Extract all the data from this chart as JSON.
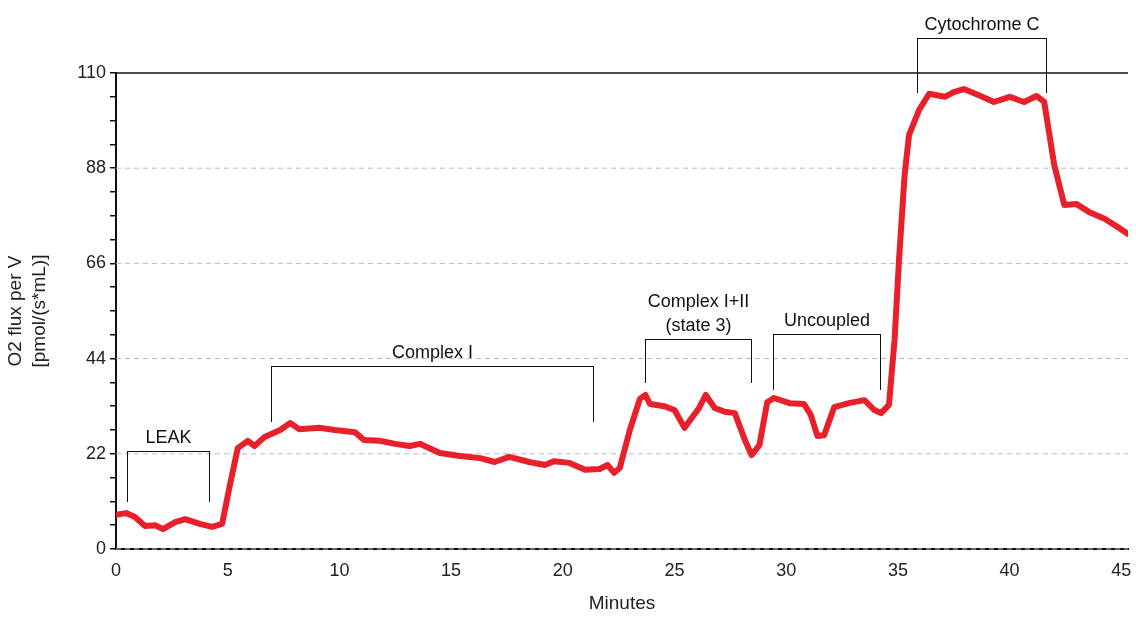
{
  "chart_data": {
    "type": "line",
    "xlabel": "Minutes",
    "ylabel": "O2 flux per V\n[pmol/(s*mL)]",
    "xlim": [
      0,
      45.3
    ],
    "xticks": [
      0,
      5,
      10,
      15,
      20,
      25,
      30,
      35,
      40,
      45
    ],
    "ylim": [
      0,
      110
    ],
    "yticks": [
      0,
      {
        "value": 5.5,
        "label": null
      },
      {
        "value": 11,
        "label": null
      },
      {
        "value": 16.5,
        "label": null
      },
      22,
      {
        "value": 27.5,
        "label": null
      },
      {
        "value": 33,
        "label": null
      },
      {
        "value": 38.5,
        "label": null
      },
      44,
      {
        "value": 49.5,
        "label": null
      },
      {
        "value": 55,
        "label": null
      },
      {
        "value": 60.5,
        "label": null
      },
      66,
      {
        "value": 71.5,
        "label": null
      },
      {
        "value": 77,
        "label": null
      },
      {
        "value": 82.5,
        "label": null
      },
      88,
      {
        "value": 93.5,
        "label": null
      },
      {
        "value": 99,
        "label": null
      },
      {
        "value": 104.5,
        "label": null
      },
      110
    ],
    "grid": "y",
    "legend": false,
    "marker": "none",
    "line_style": "solid",
    "series": [
      {
        "color": "#e8202a",
        "x": [
          0,
          0.45,
          0.85,
          1.3,
          1.75,
          2.1,
          2.65,
          3.1,
          3.75,
          4.3,
          4.75,
          5.1,
          5.45,
          5.9,
          6.2,
          6.65,
          7.35,
          7.8,
          8.2,
          9.1,
          9.8,
          10.7,
          11.1,
          11.8,
          12.5,
          13.15,
          13.6,
          14.5,
          15.4,
          16.3,
          16.95,
          17.6,
          18.5,
          19.2,
          19.6,
          20.3,
          21,
          21.65,
          22,
          22.3,
          22.55,
          23,
          23.45,
          23.7,
          23.9,
          24.55,
          25,
          25.45,
          26.1,
          26.4,
          26.8,
          27.25,
          27.7,
          28.15,
          28.45,
          28.8,
          29.15,
          29.45,
          30.15,
          30.8,
          31.1,
          31.4,
          31.7,
          32.15,
          32.8,
          33.5,
          33.95,
          34.25,
          34.6,
          34.85,
          35.05,
          35.3,
          35.5,
          35.95,
          36.4,
          37.1,
          37.5,
          37.95,
          38.6,
          39.3,
          40,
          40.65,
          41.2,
          41.55,
          42,
          42.45,
          43,
          43.55,
          44.25,
          44.9,
          45.3
        ],
        "values": [
          7.9,
          8.3,
          7.4,
          5.3,
          5.5,
          4.6,
          6.2,
          6.9,
          5.8,
          5.1,
          5.8,
          14.8,
          23.3,
          25,
          23.8,
          25.9,
          27.5,
          29.1,
          27.7,
          28,
          27.5,
          27,
          25.2,
          25,
          24.3,
          23.8,
          24.3,
          22.2,
          21.5,
          21,
          20.1,
          21.3,
          20.1,
          19.4,
          20.3,
          19.9,
          18.3,
          18.5,
          19.4,
          17.6,
          18.7,
          27.5,
          34.7,
          35.6,
          33.5,
          33,
          32.1,
          28,
          32.6,
          35.6,
          32.6,
          31.7,
          31.4,
          25.2,
          21.7,
          24,
          33.9,
          34.9,
          33.7,
          33.5,
          31,
          26.1,
          26.3,
          32.8,
          33.7,
          34.4,
          32.1,
          31.4,
          33.3,
          48.3,
          66.8,
          86.4,
          95.7,
          101.5,
          105.2,
          104.5,
          105.6,
          106.3,
          104.9,
          103.3,
          104.5,
          103.3,
          104.7,
          103.3,
          88.7,
          79.5,
          79.7,
          77.9,
          76.3,
          74.2,
          72.8
        ]
      }
    ],
    "annotations": [
      "LEAK",
      "Complex I",
      "Complex I+II\n(state 3)",
      "Uncoupled",
      "Cytochrome C"
    ]
  }
}
